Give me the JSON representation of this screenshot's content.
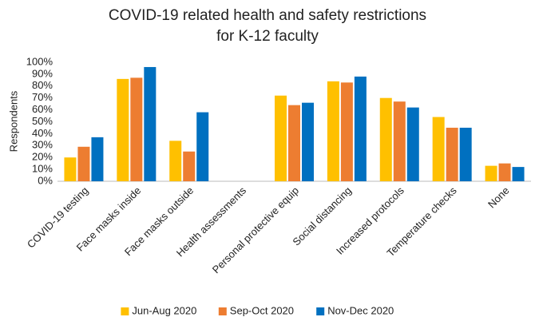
{
  "chart_data": {
    "type": "bar",
    "title": [
      "COVID-19 related health and safety restrictions",
      "for K-12 faculty"
    ],
    "y_label": "Respondents",
    "categories": [
      "COVID-19 testing",
      "Face masks inside",
      "Face masks outside",
      "Health assessments",
      "Personal protective equip",
      "Social distancing",
      "Increased protocols",
      "Temperature checks",
      "None"
    ],
    "series": [
      {
        "name": "Jun-Aug 2020",
        "color": "#ffc000",
        "values": [
          20,
          86,
          34,
          null,
          72,
          84,
          70,
          54,
          13
        ]
      },
      {
        "name": "Sep-Oct 2020",
        "color": "#ed7d31",
        "values": [
          29,
          87,
          25,
          null,
          64,
          83,
          67,
          45,
          15
        ]
      },
      {
        "name": "Nov-Dec 2020",
        "color": "#0070c0",
        "values": [
          37,
          96,
          58,
          null,
          66,
          88,
          62,
          45,
          12
        ]
      }
    ],
    "ylim": [
      0,
      100
    ],
    "yticks": [
      {
        "value": 0,
        "label": "0%"
      },
      {
        "value": 10,
        "label": "10%"
      },
      {
        "value": 20,
        "label": "20%"
      },
      {
        "value": 30,
        "label": "30%"
      },
      {
        "value": 40,
        "label": "40%"
      },
      {
        "value": 50,
        "label": "50%"
      },
      {
        "value": 60,
        "label": "60%"
      },
      {
        "value": 70,
        "label": "70%"
      },
      {
        "value": 80,
        "label": "80%"
      },
      {
        "value": 90,
        "label": "90%"
      },
      {
        "value": 100,
        "label": "100%"
      }
    ],
    "grid": false,
    "legend": "bottom"
  }
}
